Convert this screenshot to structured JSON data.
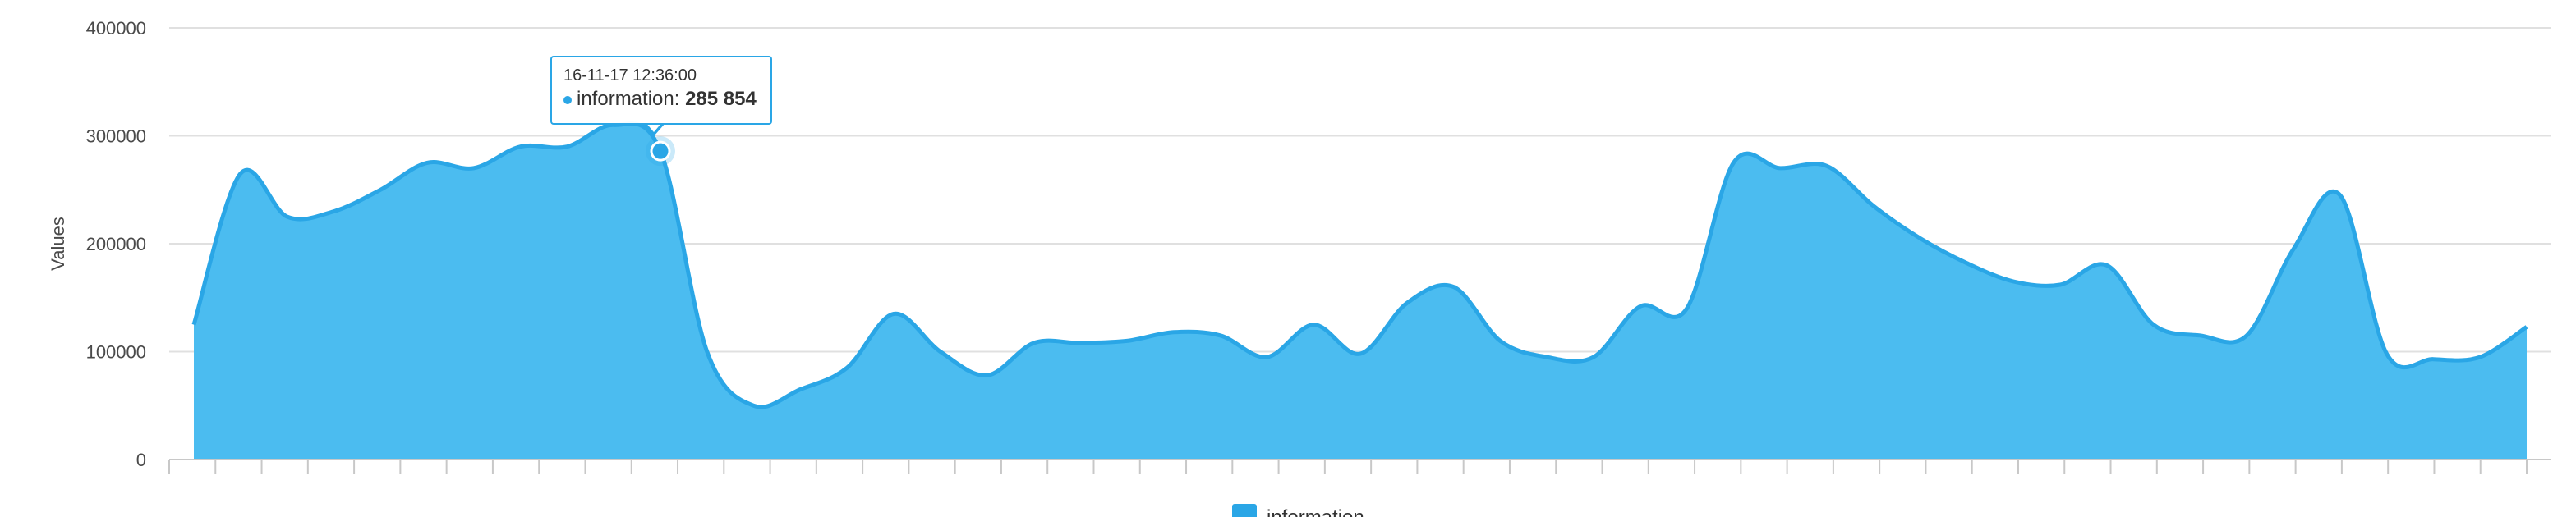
{
  "chart_data": {
    "type": "area",
    "ylabel": "Values",
    "ylim": [
      0,
      400000
    ],
    "y_ticks": [
      "0",
      "100000",
      "200000",
      "300000",
      "400000"
    ],
    "grid": true,
    "legend_position": "bottom-center",
    "series": [
      {
        "name": "information",
        "color": "#2aa6e6",
        "fill_color": "#4bbcf0",
        "values": [
          125000,
          265000,
          225000,
          230000,
          250000,
          275000,
          270000,
          290000,
          290000,
          310000,
          285854,
          100000,
          50000,
          65000,
          85000,
          135000,
          100000,
          78000,
          108000,
          108000,
          110000,
          118000,
          115000,
          95000,
          125000,
          98000,
          145000,
          160000,
          110000,
          95000,
          95000,
          142000,
          140000,
          275000,
          270000,
          272000,
          235000,
          205000,
          182000,
          165000,
          162000,
          180000,
          125000,
          115000,
          115000,
          195000,
          245000,
          98000,
          93000,
          95000,
          123000
        ]
      }
    ],
    "tooltip": {
      "date": "16-11-17 12:36:00",
      "series_name": "information",
      "value": "285 854",
      "point_index": 10
    }
  }
}
